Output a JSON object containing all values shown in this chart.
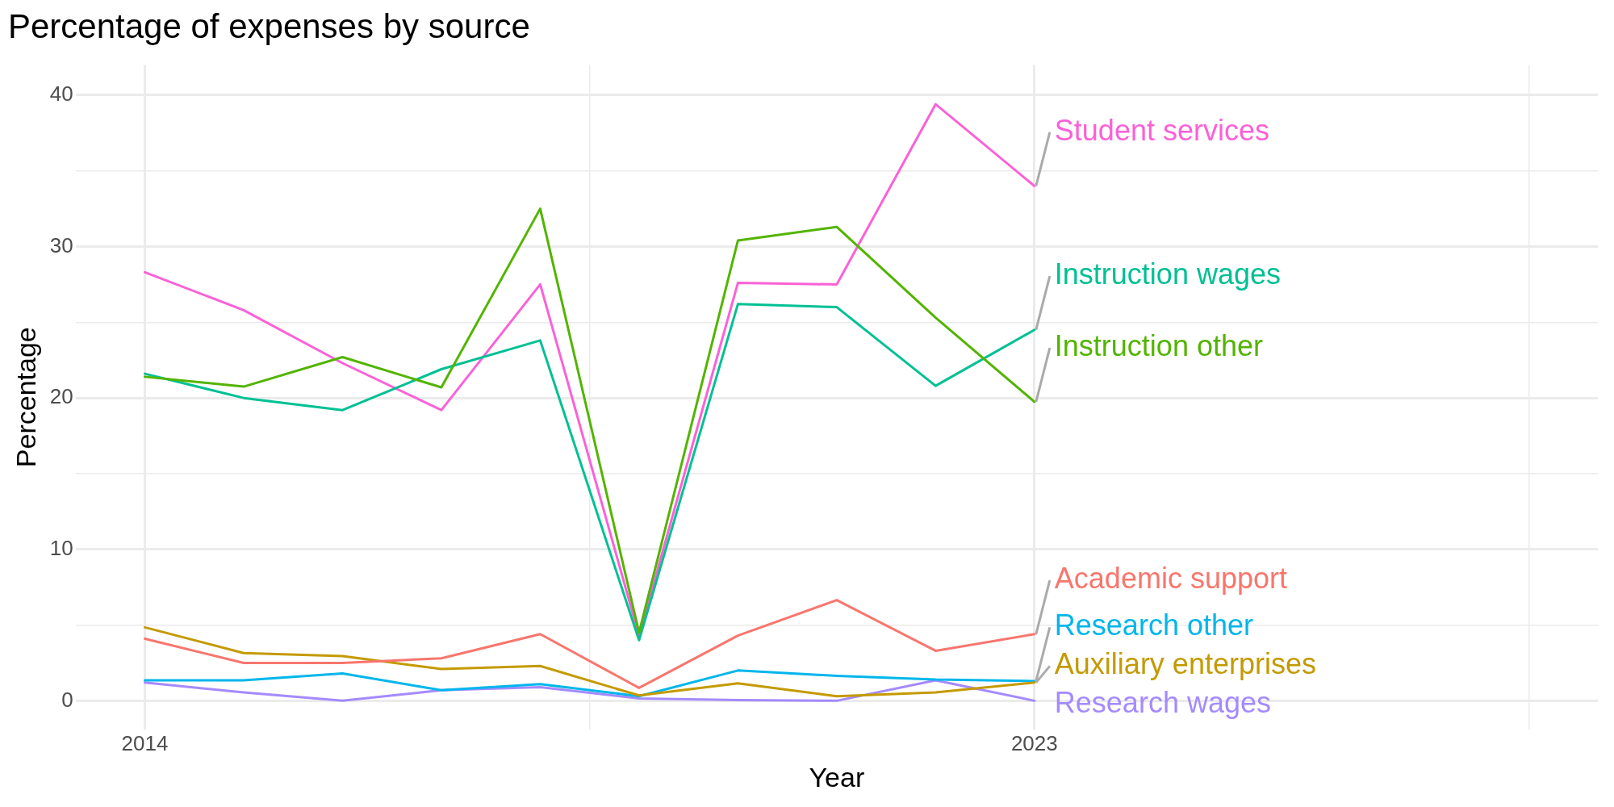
{
  "chart_data": {
    "type": "line",
    "title": "Percentage of expenses by source",
    "xlabel": "Year",
    "ylabel": "Percentage",
    "x": [
      2014,
      2015,
      2016,
      2017,
      2018,
      2019,
      2020,
      2021,
      2022,
      2023
    ],
    "xlim": [
      2013.3,
      2028.7
    ],
    "xticks": [
      2014,
      {
        "value": 2018.5,
        "label": null
      },
      2023,
      {
        "value": 2028,
        "label": null
      }
    ],
    "ylim": [
      -1.9,
      42
    ],
    "yticks": [
      0,
      {
        "value": 5,
        "label": null
      },
      10,
      {
        "value": 15,
        "label": null
      },
      20,
      {
        "value": 25,
        "label": null
      },
      30,
      {
        "value": 35,
        "label": null
      },
      40
    ],
    "grid": true,
    "legend": false,
    "marker": "none",
    "line_style": "solid",
    "series": [
      {
        "name": "Academic support",
        "color": "#f8766d",
        "values": [
          4.1,
          2.5,
          2.5,
          2.8,
          4.4,
          0.85,
          4.3,
          6.65,
          3.3,
          4.4
        ]
      },
      {
        "name": "Auxiliary enterprises",
        "color": "#c49a00",
        "values": [
          4.85,
          3.15,
          2.95,
          2.1,
          2.3,
          0.35,
          1.15,
          0.3,
          0.55,
          1.2
        ]
      },
      {
        "name": "Instruction other",
        "color": "#53b400",
        "values": [
          21.4,
          20.75,
          22.7,
          20.7,
          32.5,
          4.5,
          30.4,
          31.3,
          25.3,
          19.75
        ]
      },
      {
        "name": "Instruction wages",
        "color": "#00c094",
        "values": [
          21.6,
          20.0,
          19.2,
          21.9,
          23.8,
          4.0,
          26.2,
          26.0,
          20.8,
          24.5
        ]
      },
      {
        "name": "Research other",
        "color": "#00b6eb",
        "values": [
          1.35,
          1.35,
          1.8,
          0.7,
          1.1,
          0.3,
          2.0,
          1.65,
          1.4,
          1.3
        ]
      },
      {
        "name": "Research wages",
        "color": "#a58aff",
        "values": [
          1.2,
          0.55,
          0.0,
          0.7,
          0.9,
          0.15,
          0.05,
          0.0,
          1.35,
          0.0
        ]
      },
      {
        "name": "Student services",
        "color": "#fb61d7",
        "values": [
          28.3,
          25.8,
          22.3,
          19.2,
          27.5,
          4.3,
          27.6,
          27.5,
          39.4,
          34.0
        ]
      }
    ]
  }
}
